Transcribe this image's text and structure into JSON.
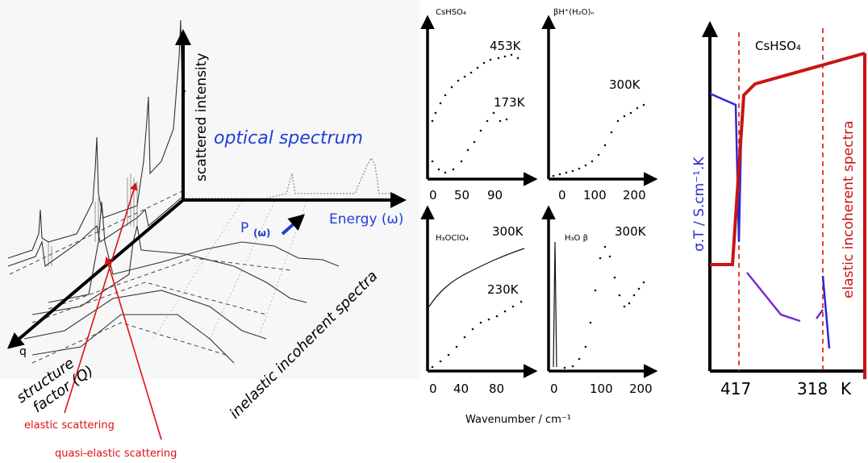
{
  "left_figure": {
    "y_axis_label": "scattered intensity",
    "optical_label": "optical spectrum",
    "p_label": "P",
    "p_subscript": "(ω)",
    "energy_label": "Energy (ω)",
    "structure_factor_line1": "structure",
    "structure_factor_line2": "factor (Q)",
    "q_axis_letter": "q",
    "inelastic_label": "inelastic incoherent spectra",
    "elastic_scattering_label": "elastic scattering",
    "quasi_elastic_label": "quasi-elastic scattering",
    "colors": {
      "optical": "#1f3fd6",
      "annotation": "#e01010"
    }
  },
  "spectra_panels": {
    "xlabel": "Wavenumber  / cm⁻¹",
    "panels": [
      {
        "id": "cshso4",
        "label": "CsHSO₄",
        "temp_top": "453K",
        "temp_bottom": "173K",
        "ticks": [
          "0",
          "50",
          "90"
        ]
      },
      {
        "id": "bh",
        "label": "βH⁺(H₂O)ₙ",
        "temp_top": "300K",
        "ticks": [
          "0",
          "100",
          "200"
        ]
      },
      {
        "id": "h3oclo4",
        "label": "H₃OClO₄",
        "temp_top": "300K",
        "temp_bottom": "230K",
        "ticks": [
          "0",
          "40",
          "80"
        ]
      },
      {
        "id": "h3ob",
        "label": "H₃O β",
        "temp_top": "300K",
        "ticks": [
          "0",
          "100",
          "200"
        ]
      }
    ]
  },
  "right_figure": {
    "title": "CsHSO₄",
    "y_left_label": "σ.T / S.cm⁻¹.K",
    "y_right_label": "elastic incoherent spectra",
    "x_ticks": [
      "417",
      "318",
      "K"
    ],
    "colors": {
      "conductivity": "#2a2ad0",
      "elastic": "#c81414",
      "transition": "#7a2ad0",
      "dashed": "#e01010"
    }
  }
}
